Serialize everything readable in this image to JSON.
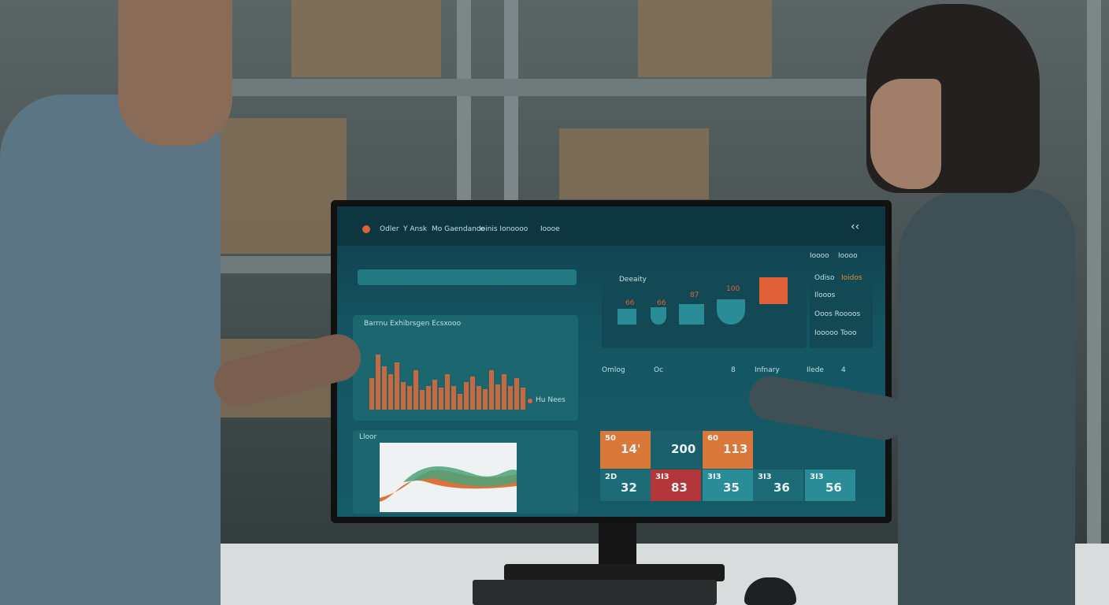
{
  "screen": {
    "header": {
      "items": [
        "Odler",
        "Y Ansk",
        "Mo Gaendance",
        "Ioinis Ionoooo",
        "Ioooe"
      ],
      "back_icon": "chevron-left-icon"
    },
    "top_right": [
      "Ioooo",
      "Ioooo"
    ],
    "left_panel": {
      "chart_title": "Barrnu Exhibrsgen Ecsxooo",
      "legend": "Hu Nees",
      "bottom_title": "Lloor"
    },
    "icons_panel": {
      "title": "Deeaity",
      "values": [
        "66",
        "66",
        "87",
        "100"
      ]
    },
    "side_panel": {
      "title": "Odiso",
      "badge": "Ioidos",
      "items": [
        "Ilooos",
        "Ooos Roooos",
        "Iooooo Tooo"
      ]
    },
    "mid_labels": [
      "Omlog",
      "Oc",
      "8",
      "Infnary",
      "Ilede",
      "4"
    ],
    "tiles": [
      {
        "small": "50",
        "big": "14'",
        "color": "#d9783a"
      },
      {
        "small": "",
        "big": "200",
        "color": "#1a5f69"
      },
      {
        "small": "60",
        "big": "113",
        "color": "#d9783a"
      },
      {
        "small": "2D",
        "big": "32",
        "color": "#1c6b76"
      },
      {
        "small": "3I3",
        "big": "83",
        "color": "#b2363a"
      },
      {
        "small": "3I3",
        "big": "35",
        "color": "#2a8c96"
      },
      {
        "small": "3I3",
        "big": "36",
        "color": "#1c6b76"
      },
      {
        "small": "3I3",
        "big": "56",
        "color": "#2a8c96"
      }
    ],
    "bar_values": [
      40,
      70,
      55,
      45,
      60,
      35,
      30,
      50,
      25,
      30,
      38,
      28,
      45,
      30,
      20,
      35,
      42,
      30,
      26,
      50,
      32,
      45,
      30,
      40,
      28
    ]
  },
  "colors": {
    "accent": "#e0603a",
    "teal": "#2a8c96"
  }
}
